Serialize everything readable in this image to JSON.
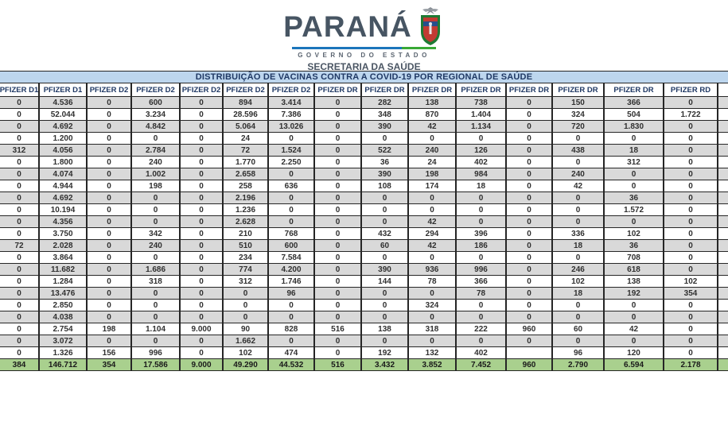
{
  "header": {
    "logo_text": "PARANÁ",
    "logo_subtitle": "GOVERNO DO ESTADO",
    "department": "SECRETARIA DA SAÚDE"
  },
  "table": {
    "title": "DISTRIBUIÇÃO DE VACINAS CONTRA A COVID-19 POR REGIONAL DE SAÚDE",
    "columns": [
      "PFIZER D1",
      "PFIZER D1",
      "PFIZER D2",
      "PFIZER D2",
      "PFIZER D2",
      "PFIZER D2",
      "PFIZER D2",
      "PFIZER DR",
      "PFIZER DR",
      "PFIZER DR",
      "PFIZER DR",
      "PFIZER DR",
      "PFIZER DR",
      "PFIZER DR",
      "PFIZER RD"
    ],
    "rows": [
      [
        "0",
        "4.536",
        "0",
        "600",
        "0",
        "894",
        "3.414",
        "0",
        "282",
        "138",
        "738",
        "0",
        "150",
        "366",
        "0"
      ],
      [
        "0",
        "52.044",
        "0",
        "3.234",
        "0",
        "28.596",
        "7.386",
        "0",
        "348",
        "870",
        "1.404",
        "0",
        "324",
        "504",
        "1.722"
      ],
      [
        "0",
        "4.692",
        "0",
        "4.842",
        "0",
        "5.064",
        "13.026",
        "0",
        "390",
        "42",
        "1.134",
        "0",
        "720",
        "1.830",
        "0"
      ],
      [
        "0",
        "1.200",
        "0",
        "0",
        "0",
        "24",
        "0",
        "0",
        "0",
        "0",
        "0",
        "0",
        "0",
        "0",
        "0"
      ],
      [
        "312",
        "4.056",
        "0",
        "2.784",
        "0",
        "72",
        "1.524",
        "0",
        "522",
        "240",
        "126",
        "0",
        "438",
        "18",
        "0"
      ],
      [
        "0",
        "1.800",
        "0",
        "240",
        "0",
        "1.770",
        "2.250",
        "0",
        "36",
        "24",
        "402",
        "0",
        "0",
        "312",
        "0"
      ],
      [
        "0",
        "4.074",
        "0",
        "1.002",
        "0",
        "2.658",
        "0",
        "0",
        "390",
        "198",
        "984",
        "0",
        "240",
        "0",
        "0"
      ],
      [
        "0",
        "4.944",
        "0",
        "198",
        "0",
        "258",
        "636",
        "0",
        "108",
        "174",
        "18",
        "0",
        "42",
        "0",
        "0"
      ],
      [
        "0",
        "4.692",
        "0",
        "0",
        "0",
        "2.196",
        "0",
        "0",
        "0",
        "0",
        "0",
        "0",
        "0",
        "36",
        "0"
      ],
      [
        "0",
        "10.194",
        "0",
        "0",
        "0",
        "1.236",
        "0",
        "0",
        "0",
        "0",
        "0",
        "0",
        "0",
        "1.572",
        "0"
      ],
      [
        "0",
        "4.356",
        "0",
        "0",
        "0",
        "2.628",
        "0",
        "0",
        "0",
        "42",
        "0",
        "0",
        "0",
        "0",
        "0"
      ],
      [
        "0",
        "3.750",
        "0",
        "342",
        "0",
        "210",
        "768",
        "0",
        "432",
        "294",
        "396",
        "0",
        "336",
        "102",
        "0"
      ],
      [
        "72",
        "2.028",
        "0",
        "240",
        "0",
        "510",
        "600",
        "0",
        "60",
        "42",
        "186",
        "0",
        "18",
        "36",
        "0"
      ],
      [
        "0",
        "3.864",
        "0",
        "0",
        "0",
        "234",
        "7.584",
        "0",
        "0",
        "0",
        "0",
        "0",
        "0",
        "708",
        "0"
      ],
      [
        "0",
        "11.682",
        "0",
        "1.686",
        "0",
        "774",
        "4.200",
        "0",
        "390",
        "936",
        "996",
        "0",
        "246",
        "618",
        "0"
      ],
      [
        "0",
        "1.284",
        "0",
        "318",
        "0",
        "312",
        "1.746",
        "0",
        "144",
        "78",
        "366",
        "0",
        "102",
        "138",
        "102"
      ],
      [
        "0",
        "13.476",
        "0",
        "0",
        "0",
        "0",
        "96",
        "0",
        "0",
        "0",
        "78",
        "0",
        "18",
        "192",
        "354"
      ],
      [
        "0",
        "2.850",
        "0",
        "0",
        "0",
        "0",
        "0",
        "0",
        "0",
        "324",
        "0",
        "0",
        "0",
        "0",
        "0"
      ],
      [
        "0",
        "4.038",
        "0",
        "0",
        "0",
        "0",
        "0",
        "0",
        "0",
        "0",
        "0",
        "0",
        "0",
        "0",
        "0"
      ],
      [
        "0",
        "2.754",
        "198",
        "1.104",
        "9.000",
        "90",
        "828",
        "516",
        "138",
        "318",
        "222",
        "960",
        "60",
        "42",
        "0"
      ],
      [
        "0",
        "3.072",
        "0",
        "0",
        "0",
        "1.662",
        "0",
        "0",
        "0",
        "0",
        "0",
        "0",
        "0",
        "0",
        "0"
      ],
      [
        "0",
        "1.326",
        "156",
        "996",
        "0",
        "102",
        "474",
        "0",
        "192",
        "132",
        "402",
        "",
        "96",
        "120",
        "0"
      ]
    ],
    "totals": [
      "384",
      "146.712",
      "354",
      "17.586",
      "9.000",
      "49.290",
      "44.532",
      "516",
      "3.432",
      "3.852",
      "7.452",
      "960",
      "2.790",
      "6.594",
      "2.178"
    ]
  },
  "colors": {
    "title_band": "#BDD6EE",
    "header_text": "#1F3864",
    "row_stripe": "#D9D9D9",
    "total_row": "#A9D08E",
    "logo_slate": "#475563",
    "line_blue": "#1B75BB",
    "line_green": "#39A935"
  }
}
